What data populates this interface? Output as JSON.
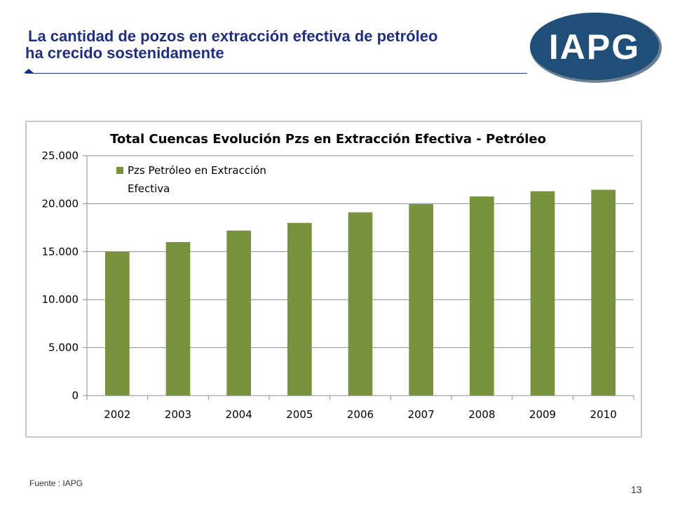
{
  "slide": {
    "title_line1": "La cantidad de pozos en extracción efectiva de petróleo",
    "title_line2": "ha crecido sostenidamente",
    "logo_text": "IAPG",
    "source_note": "Fuente :  IAPG",
    "page_number": "13"
  },
  "colors": {
    "title": "#1f2f86",
    "bar": "#77933c",
    "logo_fill": "#1f4e79",
    "gridline": "#8c8c8c"
  },
  "chart_data": {
    "type": "bar",
    "title": "Total Cuencas Evolución Pzs en Extracción Efectiva  - Petróleo",
    "categories": [
      "2002",
      "2003",
      "2004",
      "2005",
      "2006",
      "2007",
      "2008",
      "2009",
      "2010"
    ],
    "series": [
      {
        "name": "Pzs Petróleo en Extracción Efectiva",
        "legend_lines": [
          "Pzs Petróleo en Extracción",
          "Efectiva"
        ],
        "values": [
          15000,
          16000,
          17200,
          18000,
          19100,
          19950,
          20750,
          21300,
          21450
        ]
      }
    ],
    "ylim": [
      0,
      25000
    ],
    "yticks": [
      0,
      5000,
      10000,
      15000,
      20000,
      25000
    ],
    "ytick_labels": [
      "0",
      "5.000",
      "10.000",
      "15.000",
      "20.000",
      "25.000"
    ],
    "grid": true,
    "legend_position": "top-left",
    "xlabel": "",
    "ylabel": ""
  }
}
